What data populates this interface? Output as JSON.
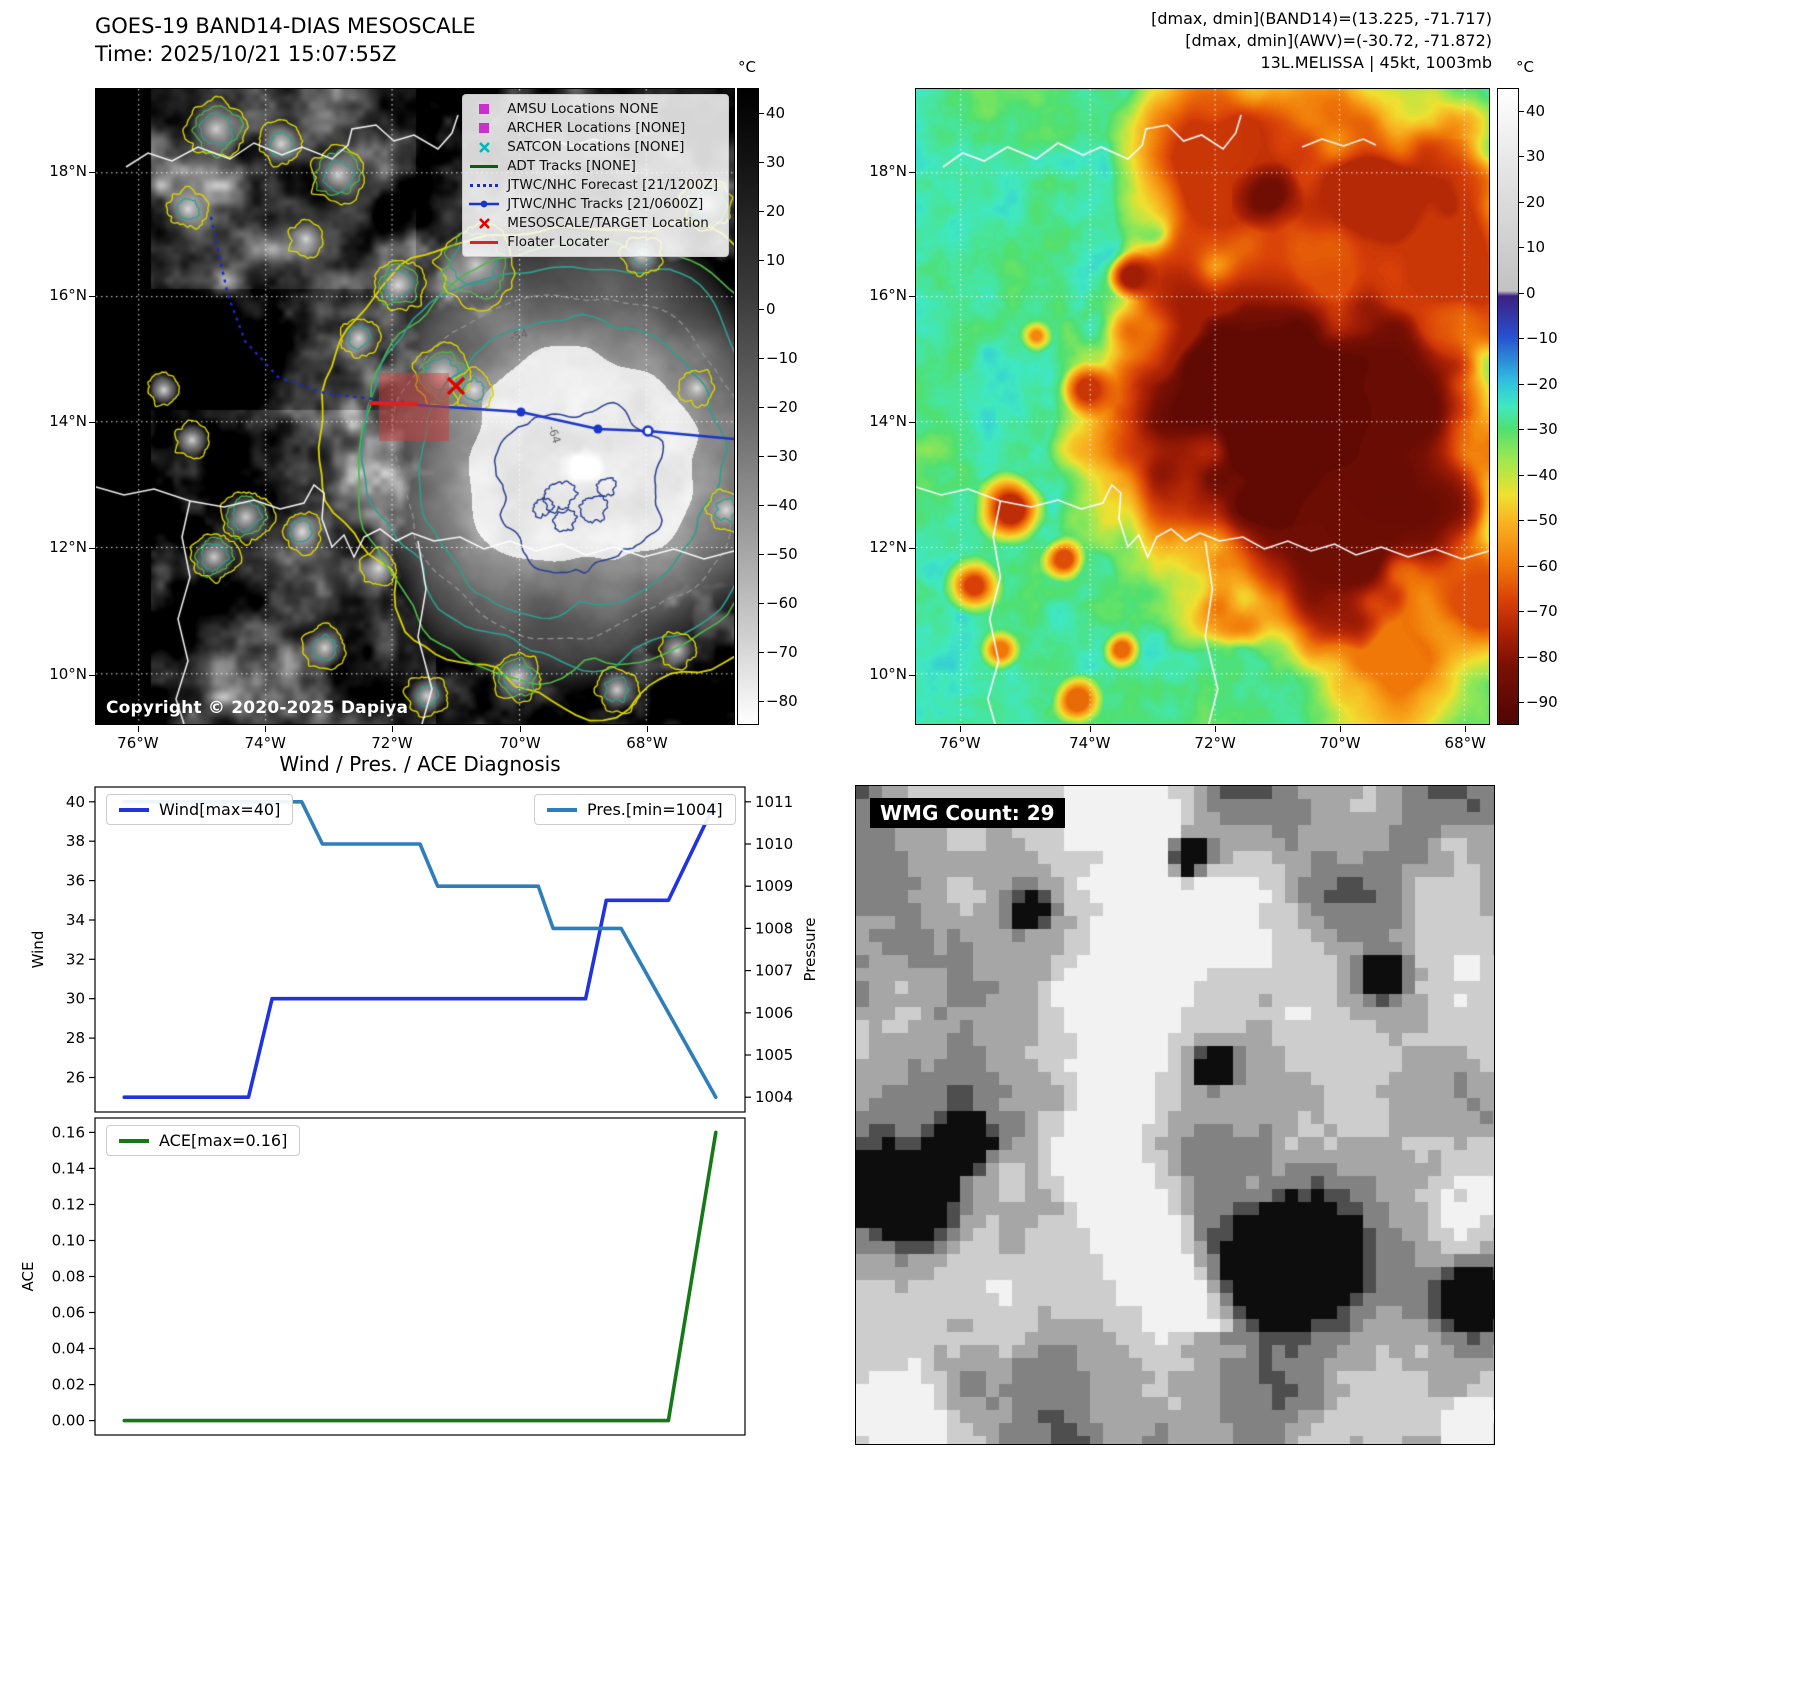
{
  "colors": {
    "forecast_track": "#1a28c8",
    "jtwc_track": "#1a35cc",
    "target_marker": "#e00000",
    "floater": "#e02020",
    "contour_yellow": "#d9d400",
    "contour_teal": "#2f9e8f",
    "contour_green": "#4db848",
    "contour_navy": "#2c3f8f"
  },
  "band14_panel": {
    "title": "GOES-19 BAND14-DIAS MESOSCALE",
    "time_line": "Time: 2025/10/21 15:07:55Z",
    "copyright": "Copyright © 2020-2025 Dapiya",
    "colorbar_unit": "°C",
    "colorbar_vmax": 45,
    "colorbar_vmin": -85,
    "colorbar_ticks": [
      40,
      30,
      20,
      10,
      0,
      -10,
      -20,
      -30,
      -40,
      -50,
      -60,
      -70,
      -80
    ],
    "lat_ticks": [
      "18°N",
      "16°N",
      "14°N",
      "12°N",
      "10°N"
    ],
    "lon_ticks": [
      "76°W",
      "74°W",
      "72°W",
      "70°W",
      "68°W"
    ],
    "contour_labels": [
      "-54",
      "-64"
    ],
    "legend": [
      {
        "label": "AMSU Locations NONE",
        "marker": "square",
        "color": "#c832c8"
      },
      {
        "label": "ARCHER Locations [NONE]",
        "marker": "square",
        "color": "#c832c8"
      },
      {
        "label": "SATCON Locations [NONE]",
        "marker": "x",
        "color": "#00b8b8"
      },
      {
        "label": "ADT Tracks [NONE]",
        "marker": "line",
        "color": "#006400"
      },
      {
        "label": "JTWC/NHC Forecast [21/1200Z]",
        "marker": "dotted",
        "color": "#1a28c8"
      },
      {
        "label": "JTWC/NHC Tracks [21/0600Z]",
        "marker": "line-marker",
        "color": "#1a35cc"
      },
      {
        "label": "MESOSCALE/TARGET Location",
        "marker": "x",
        "color": "#e00000"
      },
      {
        "label": "Floater Locater",
        "marker": "line",
        "color": "#e02020"
      }
    ]
  },
  "awv_panel": {
    "annotations": [
      "[dmax, dmin](BAND14)=(13.225, -71.717)",
      "[dmax, dmin](AWV)=(-30.72, -71.872)",
      "13L.MELISSA | 45kt, 1003mb"
    ],
    "colorbar_unit": "°C",
    "colorbar_vmax": 45,
    "colorbar_vmin": -95,
    "colorbar_ticks": [
      40,
      30,
      20,
      10,
      0,
      -10,
      -20,
      -30,
      -40,
      -50,
      -60,
      -70,
      -80,
      -90
    ],
    "lat_ticks": [
      "18°N",
      "16°N",
      "14°N",
      "12°N",
      "10°N"
    ],
    "lon_ticks": [
      "76°W",
      "74°W",
      "72°W",
      "70°W",
      "68°W"
    ]
  },
  "wmg_panel": {
    "label": "WMG Count: 29"
  },
  "chart_data": [
    {
      "type": "line",
      "title": "Wind / Pres. / ACE Diagnosis",
      "legend_left": "Wind[max=40]",
      "legend_right": "Pres.[min=1004]",
      "ylabel_left": "Wind",
      "ylabel_right": "Pressure",
      "tick_format_left": "d",
      "y_ticks_left": [
        26,
        28,
        30,
        32,
        34,
        36,
        38,
        40
      ],
      "y_ticks_right": [
        1004,
        1005,
        1006,
        1007,
        1008,
        1009,
        1010,
        1011
      ],
      "ylim_left": [
        24.25,
        40.75
      ],
      "ylim_right": [
        1003.65,
        1011.35
      ],
      "grid": false,
      "series": [
        {
          "name": "Wind",
          "axis": "left",
          "color": "#2033dd",
          "points": [
            [
              0,
              25
            ],
            [
              0.21,
              25
            ],
            [
              0.25,
              30
            ],
            [
              0.78,
              30
            ],
            [
              0.815,
              35
            ],
            [
              0.92,
              35
            ],
            [
              1,
              40
            ]
          ]
        },
        {
          "name": "Pressure",
          "axis": "right",
          "color": "#2e7ebc",
          "points": [
            [
              0,
              1011
            ],
            [
              0.3,
              1011
            ],
            [
              0.335,
              1010
            ],
            [
              0.5,
              1010
            ],
            [
              0.53,
              1009
            ],
            [
              0.7,
              1009
            ],
            [
              0.725,
              1008
            ],
            [
              0.84,
              1008
            ],
            [
              1,
              1004
            ]
          ]
        }
      ]
    },
    {
      "type": "line",
      "legend_left": "ACE[max=0.16]",
      "ylabel_left": "ACE",
      "tick_format_left": "2f",
      "y_ticks_left": [
        0,
        0.02,
        0.04,
        0.06,
        0.08,
        0.1,
        0.12,
        0.14,
        0.16
      ],
      "ylim_left": [
        -0.008,
        0.168
      ],
      "grid": false,
      "series": [
        {
          "name": "ACE",
          "axis": "left",
          "color": "#157a15",
          "points": [
            [
              0,
              0
            ],
            [
              0.92,
              0
            ],
            [
              1,
              0.16
            ]
          ]
        }
      ]
    }
  ]
}
